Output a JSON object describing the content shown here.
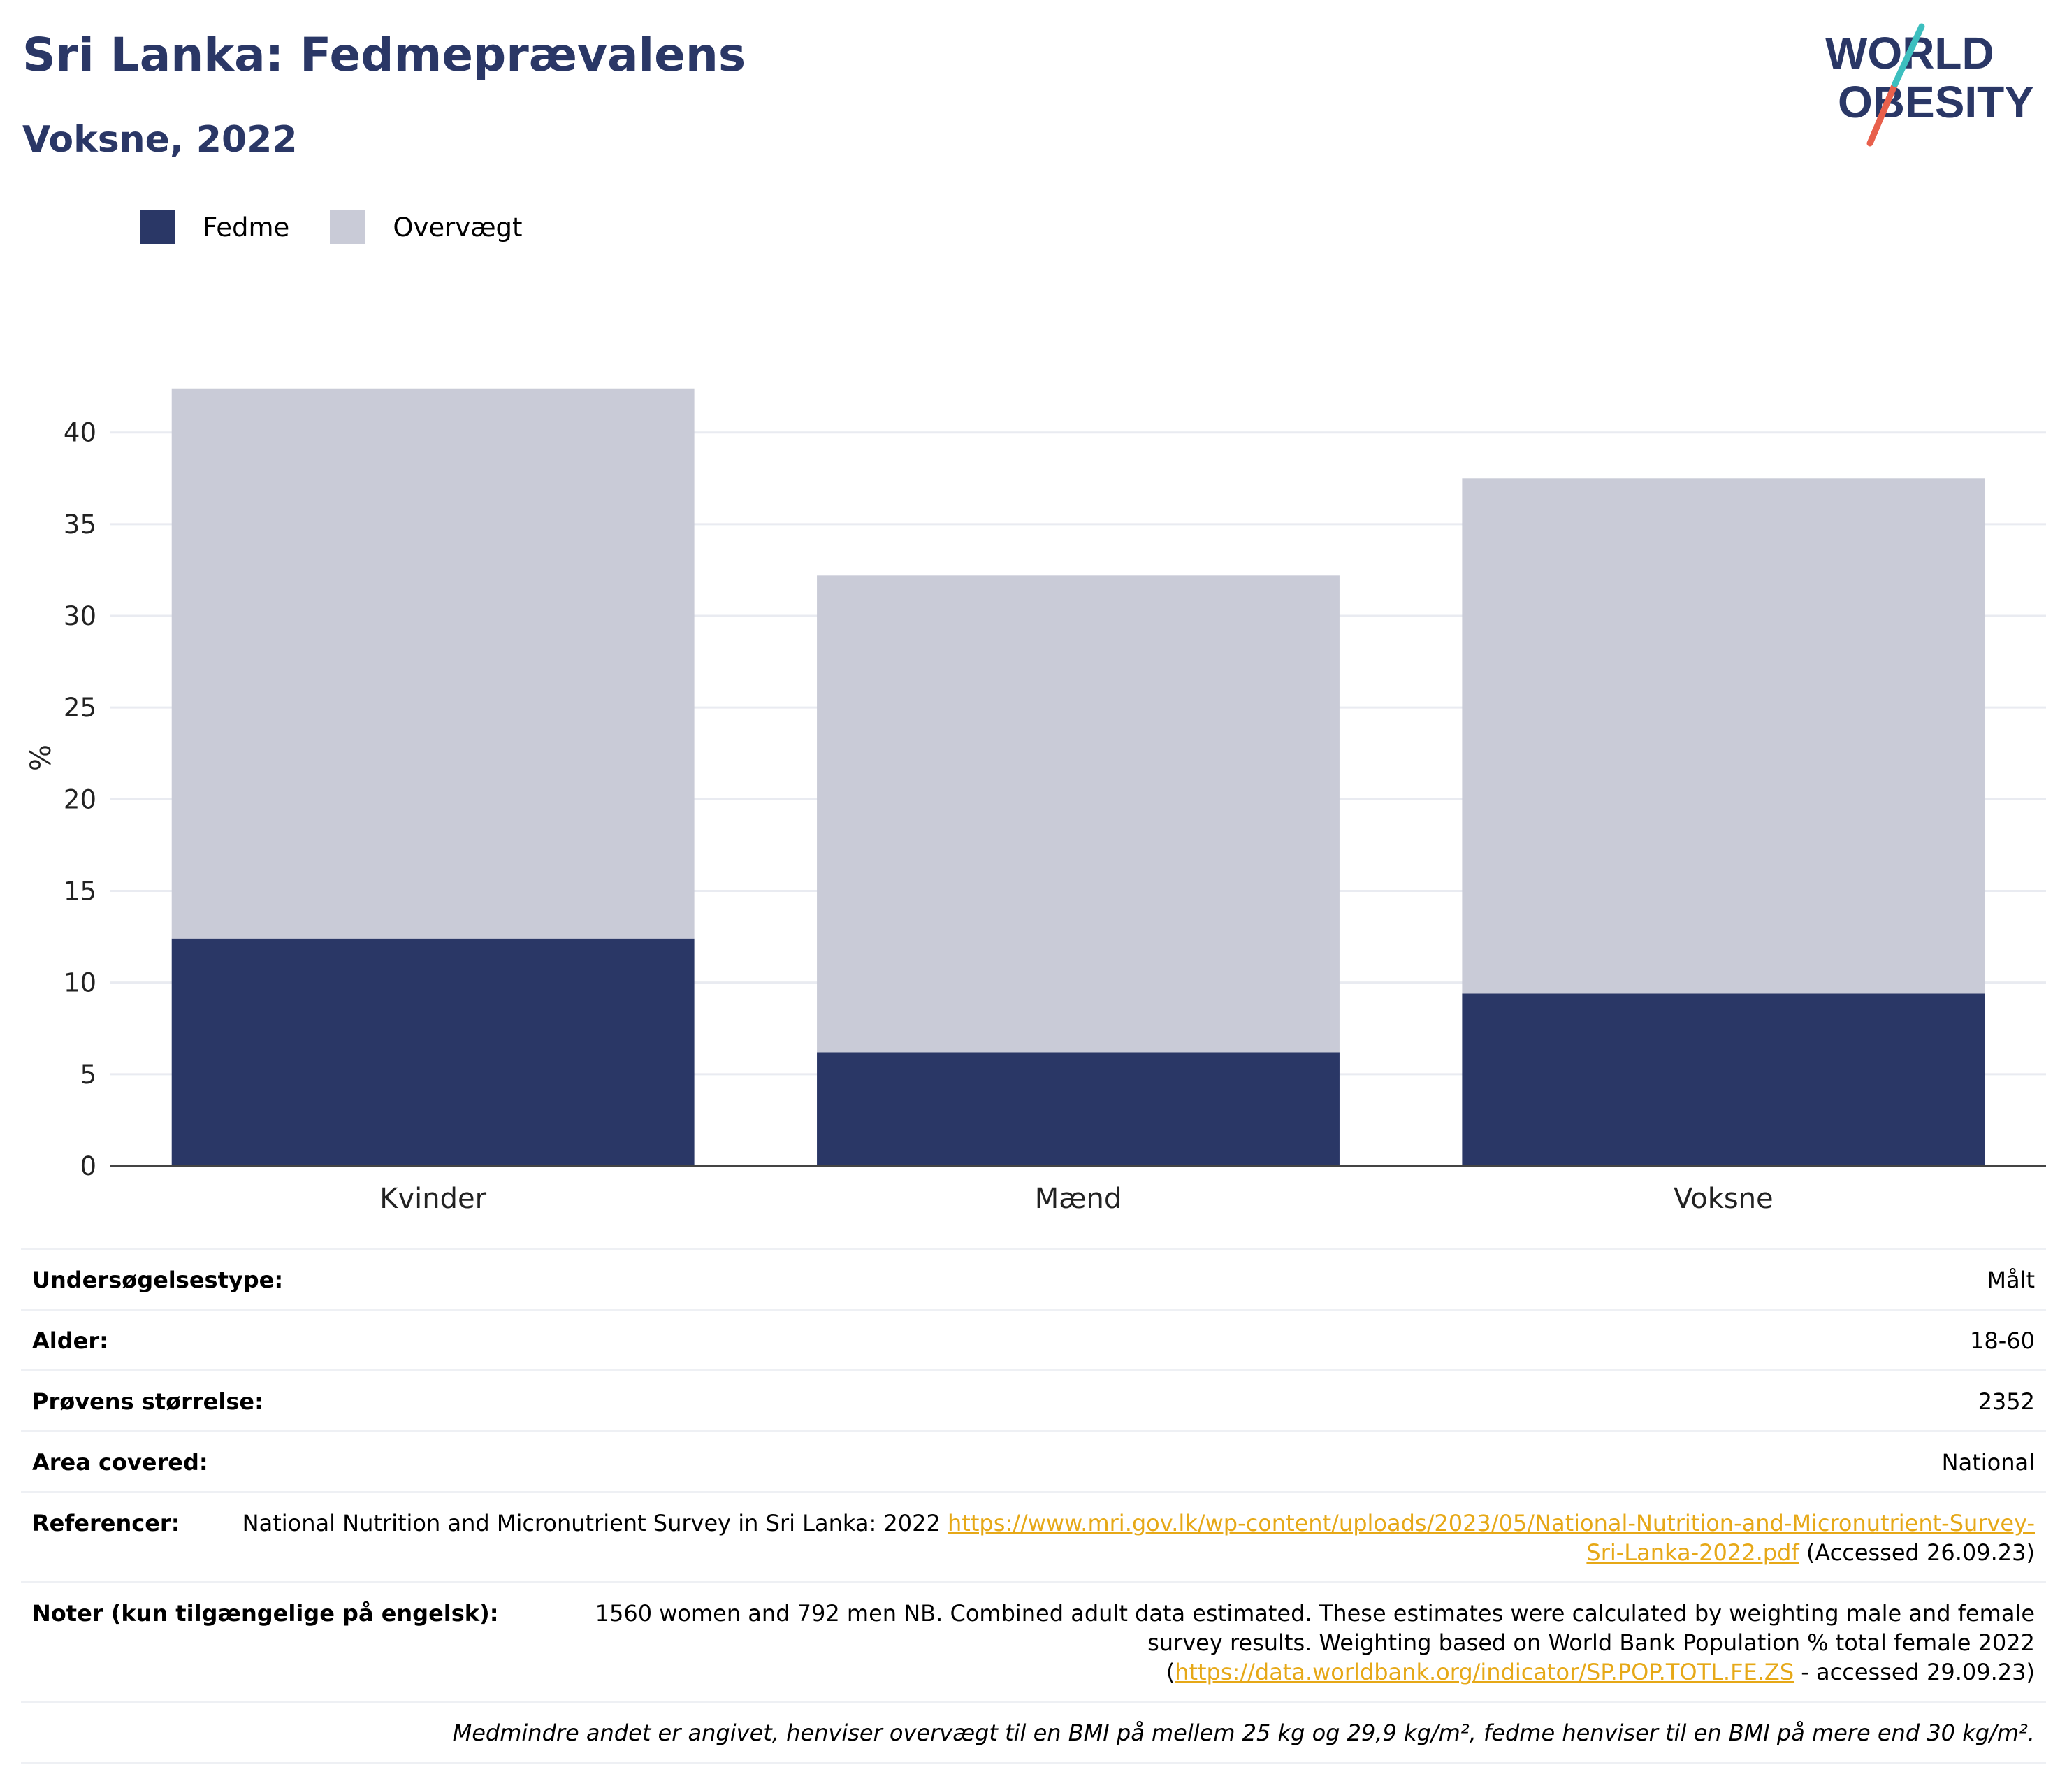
{
  "title": "Sri Lanka: Fedmeprævalens",
  "subtitle": "Voksne, 2022",
  "logo": {
    "line1": "WORLD",
    "line2": "OBESITY"
  },
  "colors": {
    "fedme": "#2a3766",
    "overvaegt": "#c9cbd7",
    "title": "#2a3766",
    "link": "#e6a817",
    "logo_slash_top": "#3dbfbf",
    "logo_slash_bottom": "#e8604c"
  },
  "legend": [
    {
      "label": "Fedme",
      "color": "#2a3766"
    },
    {
      "label": "Overvægt",
      "color": "#c9cbd7"
    }
  ],
  "chart_data": {
    "type": "bar",
    "stacked": true,
    "categories": [
      "Kvinder",
      "Mænd",
      "Voksne"
    ],
    "series": [
      {
        "name": "Fedme",
        "values": [
          12.4,
          6.2,
          9.4
        ]
      },
      {
        "name": "Overvægt",
        "values": [
          30.0,
          26.0,
          28.1
        ]
      }
    ],
    "ylabel": "%",
    "ylim": [
      0,
      43
    ],
    "yticks": [
      0,
      5,
      10,
      15,
      20,
      25,
      30,
      35,
      40
    ],
    "grid": true,
    "legend_position": "top-left"
  },
  "info": {
    "survey_type": {
      "label": "Undersøgelsestype:",
      "value": "Målt"
    },
    "age": {
      "label": "Alder:",
      "value": "18-60"
    },
    "sample_size": {
      "label": "Prøvens størrelse:",
      "value": "2352"
    },
    "area": {
      "label": "Area covered:",
      "value": "National"
    },
    "references": {
      "label": "Referencer:",
      "text_before": "National Nutrition and Micronutrient Survey in Sri Lanka: 2022 ",
      "link": "https://www.mri.gov.lk/wp-content/uploads/2023/05/National-Nutrition-and-Micronutrient-Survey-Sri-Lanka-2022.pdf",
      "text_after": " (Accessed 26.09.23)"
    },
    "notes": {
      "label": "Noter (kun tilgængelige på engelsk):",
      "text_before": "1560 women and 792 men NB. Combined adult data estimated. These estimates were calculated by weighting male and female survey results. Weighting based on World Bank Population % total female 2022 (",
      "link": "https://data.worldbank.org/indicator/SP.POP.TOTL.FE.ZS",
      "text_after": " - accessed 29.09.23)"
    },
    "footnote": "Medmindre andet er angivet, henviser overvægt til en BMI på mellem 25 kg og 29,9 kg/m², fedme henviser til en BMI på mere end 30 kg/m²."
  }
}
